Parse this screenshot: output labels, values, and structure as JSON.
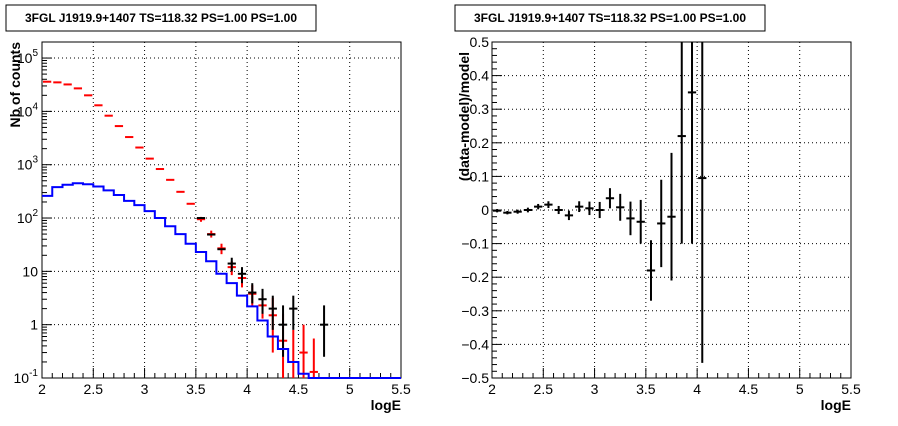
{
  "chart_data": [
    {
      "type": "line",
      "title": "3FGL J1919.9+1407 TS=118.32 PS=1.00 PS=1.00",
      "xlabel": "logE",
      "ylabel": "Nb of counts",
      "xlim": [
        2,
        5.5
      ],
      "ylim": [
        0.1,
        200000
      ],
      "yscale": "log",
      "grid": true,
      "x_ticks": [
        "2",
        "2.5",
        "3",
        "3.5",
        "4",
        "4.5",
        "5",
        "5.5"
      ],
      "y_ticks": [
        {
          "value": 0.1,
          "base": "10",
          "exp": "-1"
        },
        {
          "value": 1,
          "base": "1",
          "exp": ""
        },
        {
          "value": 10,
          "base": "10",
          "exp": ""
        },
        {
          "value": 100,
          "base": "10",
          "exp": "2"
        },
        {
          "value": 1000,
          "base": "10",
          "exp": "3"
        },
        {
          "value": 10000,
          "base": "10",
          "exp": "4"
        },
        {
          "value": 100000,
          "base": "10",
          "exp": "5"
        }
      ],
      "series": [
        {
          "color": "#ff0000",
          "style": "markers",
          "points": [
            {
              "x": 2.05,
              "y": 36000
            },
            {
              "x": 2.15,
              "y": 35000
            },
            {
              "x": 2.25,
              "y": 32000
            },
            {
              "x": 2.35,
              "y": 27000
            },
            {
              "x": 2.45,
              "y": 20000
            },
            {
              "x": 2.55,
              "y": 13000
            },
            {
              "x": 2.65,
              "y": 8300
            },
            {
              "x": 2.75,
              "y": 5300
            },
            {
              "x": 2.85,
              "y": 3300
            },
            {
              "x": 2.95,
              "y": 2100
            },
            {
              "x": 3.05,
              "y": 1300
            },
            {
              "x": 3.15,
              "y": 830
            },
            {
              "x": 3.25,
              "y": 520
            },
            {
              "x": 3.35,
              "y": 310
            },
            {
              "x": 3.45,
              "y": 185
            },
            {
              "x": 3.55,
              "y": 95,
              "err": [
                85,
                105
              ]
            },
            {
              "x": 3.65,
              "y": 50,
              "err": [
                43,
                58
              ]
            },
            {
              "x": 3.75,
              "y": 27,
              "err": [
                21,
                33
              ]
            },
            {
              "x": 3.85,
              "y": 12,
              "err": [
                8.5,
                15.5
              ]
            },
            {
              "x": 3.95,
              "y": 7.5,
              "err": [
                5,
                10.5
              ]
            },
            {
              "x": 4.05,
              "y": 3.8,
              "err": [
                2.2,
                5.5
              ]
            },
            {
              "x": 4.15,
              "y": 2.3,
              "err": [
                1.3,
                3.7
              ]
            },
            {
              "x": 4.25,
              "y": 1.5,
              "err": [
                0.3,
                3.2
              ]
            },
            {
              "x": 4.35,
              "y": 0.5,
              "err": [
                0.1,
                1.6
              ]
            },
            {
              "x": 4.45,
              "y": 0.2,
              "err": [
                0.1,
                0.8
              ]
            },
            {
              "x": 4.55,
              "y": 0.3,
              "err": [
                0.1,
                1.0
              ]
            },
            {
              "x": 4.65,
              "y": 0.13,
              "err": [
                0.1,
                0.55
              ]
            }
          ]
        },
        {
          "color": "#000000",
          "style": "markers",
          "points": [
            {
              "x": 3.55,
              "y": 100
            },
            {
              "x": 3.65,
              "y": 49
            },
            {
              "x": 3.75,
              "y": 26
            },
            {
              "x": 3.85,
              "y": 14,
              "err": [
                10,
                18
              ]
            },
            {
              "x": 3.95,
              "y": 9,
              "err": [
                6,
                12
              ]
            },
            {
              "x": 4.05,
              "y": 4,
              "err": [
                2.5,
                6
              ]
            },
            {
              "x": 4.15,
              "y": 3,
              "err": [
                1.6,
                4.7
              ]
            },
            {
              "x": 4.25,
              "y": 2,
              "err": [
                0.8,
                3.5
              ]
            },
            {
              "x": 4.35,
              "y": 1,
              "err": [
                0.25,
                2.3
              ]
            },
            {
              "x": 4.45,
              "y": 2,
              "err": [
                0.8,
                3.5
              ]
            },
            {
              "x": 4.75,
              "y": 1,
              "err": [
                0.25,
                2.3
              ]
            }
          ]
        },
        {
          "color": "#0000ff",
          "style": "step",
          "bin_edges": [
            2.0,
            2.1,
            2.2,
            2.3,
            2.4,
            2.5,
            2.6,
            2.7,
            2.8,
            2.9,
            3.0,
            3.1,
            3.2,
            3.3,
            3.4,
            3.5,
            3.6,
            3.7,
            3.8,
            3.9,
            4.0,
            4.1,
            4.2,
            4.3,
            4.4,
            4.5,
            4.6,
            4.7,
            4.8,
            4.9,
            5.0,
            5.1,
            5.2,
            5.3,
            5.4,
            5.5
          ],
          "values": [
            260,
            380,
            420,
            450,
            430,
            390,
            330,
            270,
            210,
            175,
            135,
            100,
            70,
            50,
            33,
            23,
            15.5,
            9,
            6,
            3.5,
            2.2,
            1.2,
            0.6,
            0.35,
            0.2,
            0.12,
            0.1,
            0.1,
            0.1,
            0.1,
            0.1,
            0.1,
            0.1,
            0.1,
            0.1
          ]
        }
      ]
    },
    {
      "type": "scatter",
      "title": "3FGL J1919.9+1407 TS=118.32 PS=1.00 PS=1.00",
      "xlabel": "logE",
      "ylabel": "(data-model)/model",
      "xlim": [
        2,
        5.5
      ],
      "ylim": [
        -0.5,
        0.5
      ],
      "grid": true,
      "x_ticks": [
        "2",
        "2.5",
        "3",
        "3.5",
        "4",
        "4.5",
        "5",
        "5.5"
      ],
      "y_ticks": [
        "−0.5",
        "−0.4",
        "−0.3",
        "−0.2",
        "−0.1",
        "0",
        "0.1",
        "0.2",
        "0.3",
        "0.4",
        "0.5"
      ],
      "y_tick_values": [
        -0.5,
        -0.4,
        -0.3,
        -0.2,
        -0.1,
        0,
        0.1,
        0.2,
        0.3,
        0.4,
        0.5
      ],
      "series": [
        {
          "color": "#000000",
          "points": [
            {
              "x": 2.05,
              "y": -0.002,
              "err": 0.005
            },
            {
              "x": 2.15,
              "y": -0.008,
              "err": 0.005
            },
            {
              "x": 2.25,
              "y": -0.005,
              "err": 0.006
            },
            {
              "x": 2.35,
              "y": 0.0,
              "err": 0.007
            },
            {
              "x": 2.45,
              "y": 0.01,
              "err": 0.008
            },
            {
              "x": 2.55,
              "y": 0.016,
              "err": 0.01
            },
            {
              "x": 2.65,
              "y": 0.0,
              "err": 0.012
            },
            {
              "x": 2.75,
              "y": -0.016,
              "err": 0.014
            },
            {
              "x": 2.85,
              "y": 0.01,
              "err": 0.016
            },
            {
              "x": 2.95,
              "y": 0.005,
              "err": 0.02
            },
            {
              "x": 3.05,
              "y": 0.0,
              "err": 0.024
            },
            {
              "x": 3.15,
              "y": 0.035,
              "err": 0.03
            },
            {
              "x": 3.25,
              "y": 0.008,
              "err": 0.04
            },
            {
              "x": 3.35,
              "y": -0.025,
              "err": 0.05
            },
            {
              "x": 3.45,
              "y": -0.035,
              "err": 0.065
            },
            {
              "x": 3.55,
              "y": -0.18,
              "err": 0.09
            },
            {
              "x": 3.65,
              "y": -0.04,
              "err": 0.13
            },
            {
              "x": 3.75,
              "y": -0.02,
              "err": 0.19
            },
            {
              "x": 3.85,
              "y": 0.22,
              "err": 0.32
            },
            {
              "x": 3.95,
              "y": 0.35,
              "err": 0.45
            },
            {
              "x": 4.05,
              "y": 0.095,
              "err": 0.55
            }
          ]
        }
      ]
    }
  ]
}
